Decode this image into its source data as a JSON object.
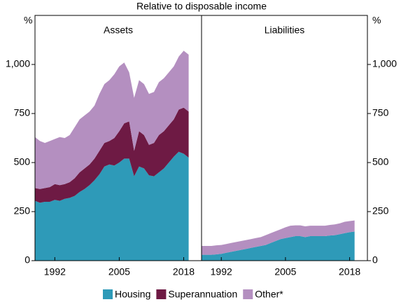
{
  "title": "Relative to disposable income",
  "chart_data": [
    {
      "type": "area",
      "title": "Assets",
      "ylabel": "%",
      "x": [
        1988,
        1989,
        1990,
        1991,
        1992,
        1993,
        1994,
        1995,
        1996,
        1997,
        1998,
        1999,
        2000,
        2001,
        2002,
        2003,
        2004,
        2005,
        2006,
        2007,
        2008,
        2009,
        2010,
        2011,
        2012,
        2013,
        2014,
        2015,
        2016,
        2017,
        2018,
        2019
      ],
      "xlim": [
        1988,
        2021.6
      ],
      "xticks": [
        1992,
        2005,
        2018
      ],
      "ylim": [
        0,
        1250
      ],
      "yticks": [
        0,
        250,
        500,
        750,
        {
          "value": 1000,
          "label": "1,000"
        }
      ],
      "series": [
        {
          "name": "Housing",
          "color": "#2e9ab8",
          "values": [
            305,
            295,
            300,
            300,
            310,
            305,
            315,
            320,
            330,
            350,
            365,
            385,
            410,
            440,
            480,
            490,
            485,
            500,
            520,
            520,
            430,
            480,
            470,
            435,
            430,
            450,
            470,
            500,
            530,
            555,
            545,
            525
          ]
        },
        {
          "name": "Superannuation",
          "color": "#6e1a44",
          "values": [
            65,
            70,
            70,
            75,
            80,
            80,
            75,
            80,
            90,
            100,
            105,
            105,
            110,
            120,
            120,
            120,
            140,
            160,
            180,
            190,
            130,
            180,
            170,
            155,
            170,
            190,
            190,
            190,
            190,
            215,
            235,
            235
          ]
        },
        {
          "name": "Other*",
          "color": "#b48fc0",
          "values": [
            260,
            245,
            230,
            235,
            230,
            245,
            235,
            240,
            260,
            270,
            270,
            270,
            270,
            290,
            300,
            310,
            325,
            330,
            310,
            250,
            270,
            260,
            260,
            260,
            260,
            270,
            270,
            270,
            270,
            270,
            290,
            290
          ]
        }
      ]
    },
    {
      "type": "area",
      "title": "Liabilities",
      "ylabel": "%",
      "x": [
        1988,
        1989,
        1990,
        1991,
        1992,
        1993,
        1994,
        1995,
        1996,
        1997,
        1998,
        1999,
        2000,
        2001,
        2002,
        2003,
        2004,
        2005,
        2006,
        2007,
        2008,
        2009,
        2010,
        2011,
        2012,
        2013,
        2014,
        2015,
        2016,
        2017,
        2018,
        2019
      ],
      "xlim": [
        1988,
        2021.6
      ],
      "xticks": [
        1992,
        2005,
        2018
      ],
      "ylim": [
        0,
        1250
      ],
      "yticks": [
        0,
        250,
        500,
        750,
        {
          "value": 1000,
          "label": "1,000"
        }
      ],
      "series": [
        {
          "name": "Housing",
          "color": "#2e9ab8",
          "values": [
            30,
            30,
            30,
            32,
            35,
            40,
            45,
            50,
            55,
            60,
            65,
            70,
            75,
            80,
            90,
            100,
            110,
            115,
            120,
            125,
            125,
            120,
            125,
            125,
            125,
            125,
            128,
            130,
            135,
            140,
            145,
            148
          ]
        },
        {
          "name": "Other*",
          "color": "#b48fc0",
          "values": [
            45,
            45,
            45,
            46,
            45,
            45,
            45,
            45,
            45,
            45,
            45,
            45,
            45,
            50,
            50,
            50,
            50,
            55,
            58,
            55,
            55,
            55,
            53,
            53,
            53,
            53,
            54,
            55,
            55,
            58,
            57,
            57
          ]
        }
      ]
    }
  ]
}
